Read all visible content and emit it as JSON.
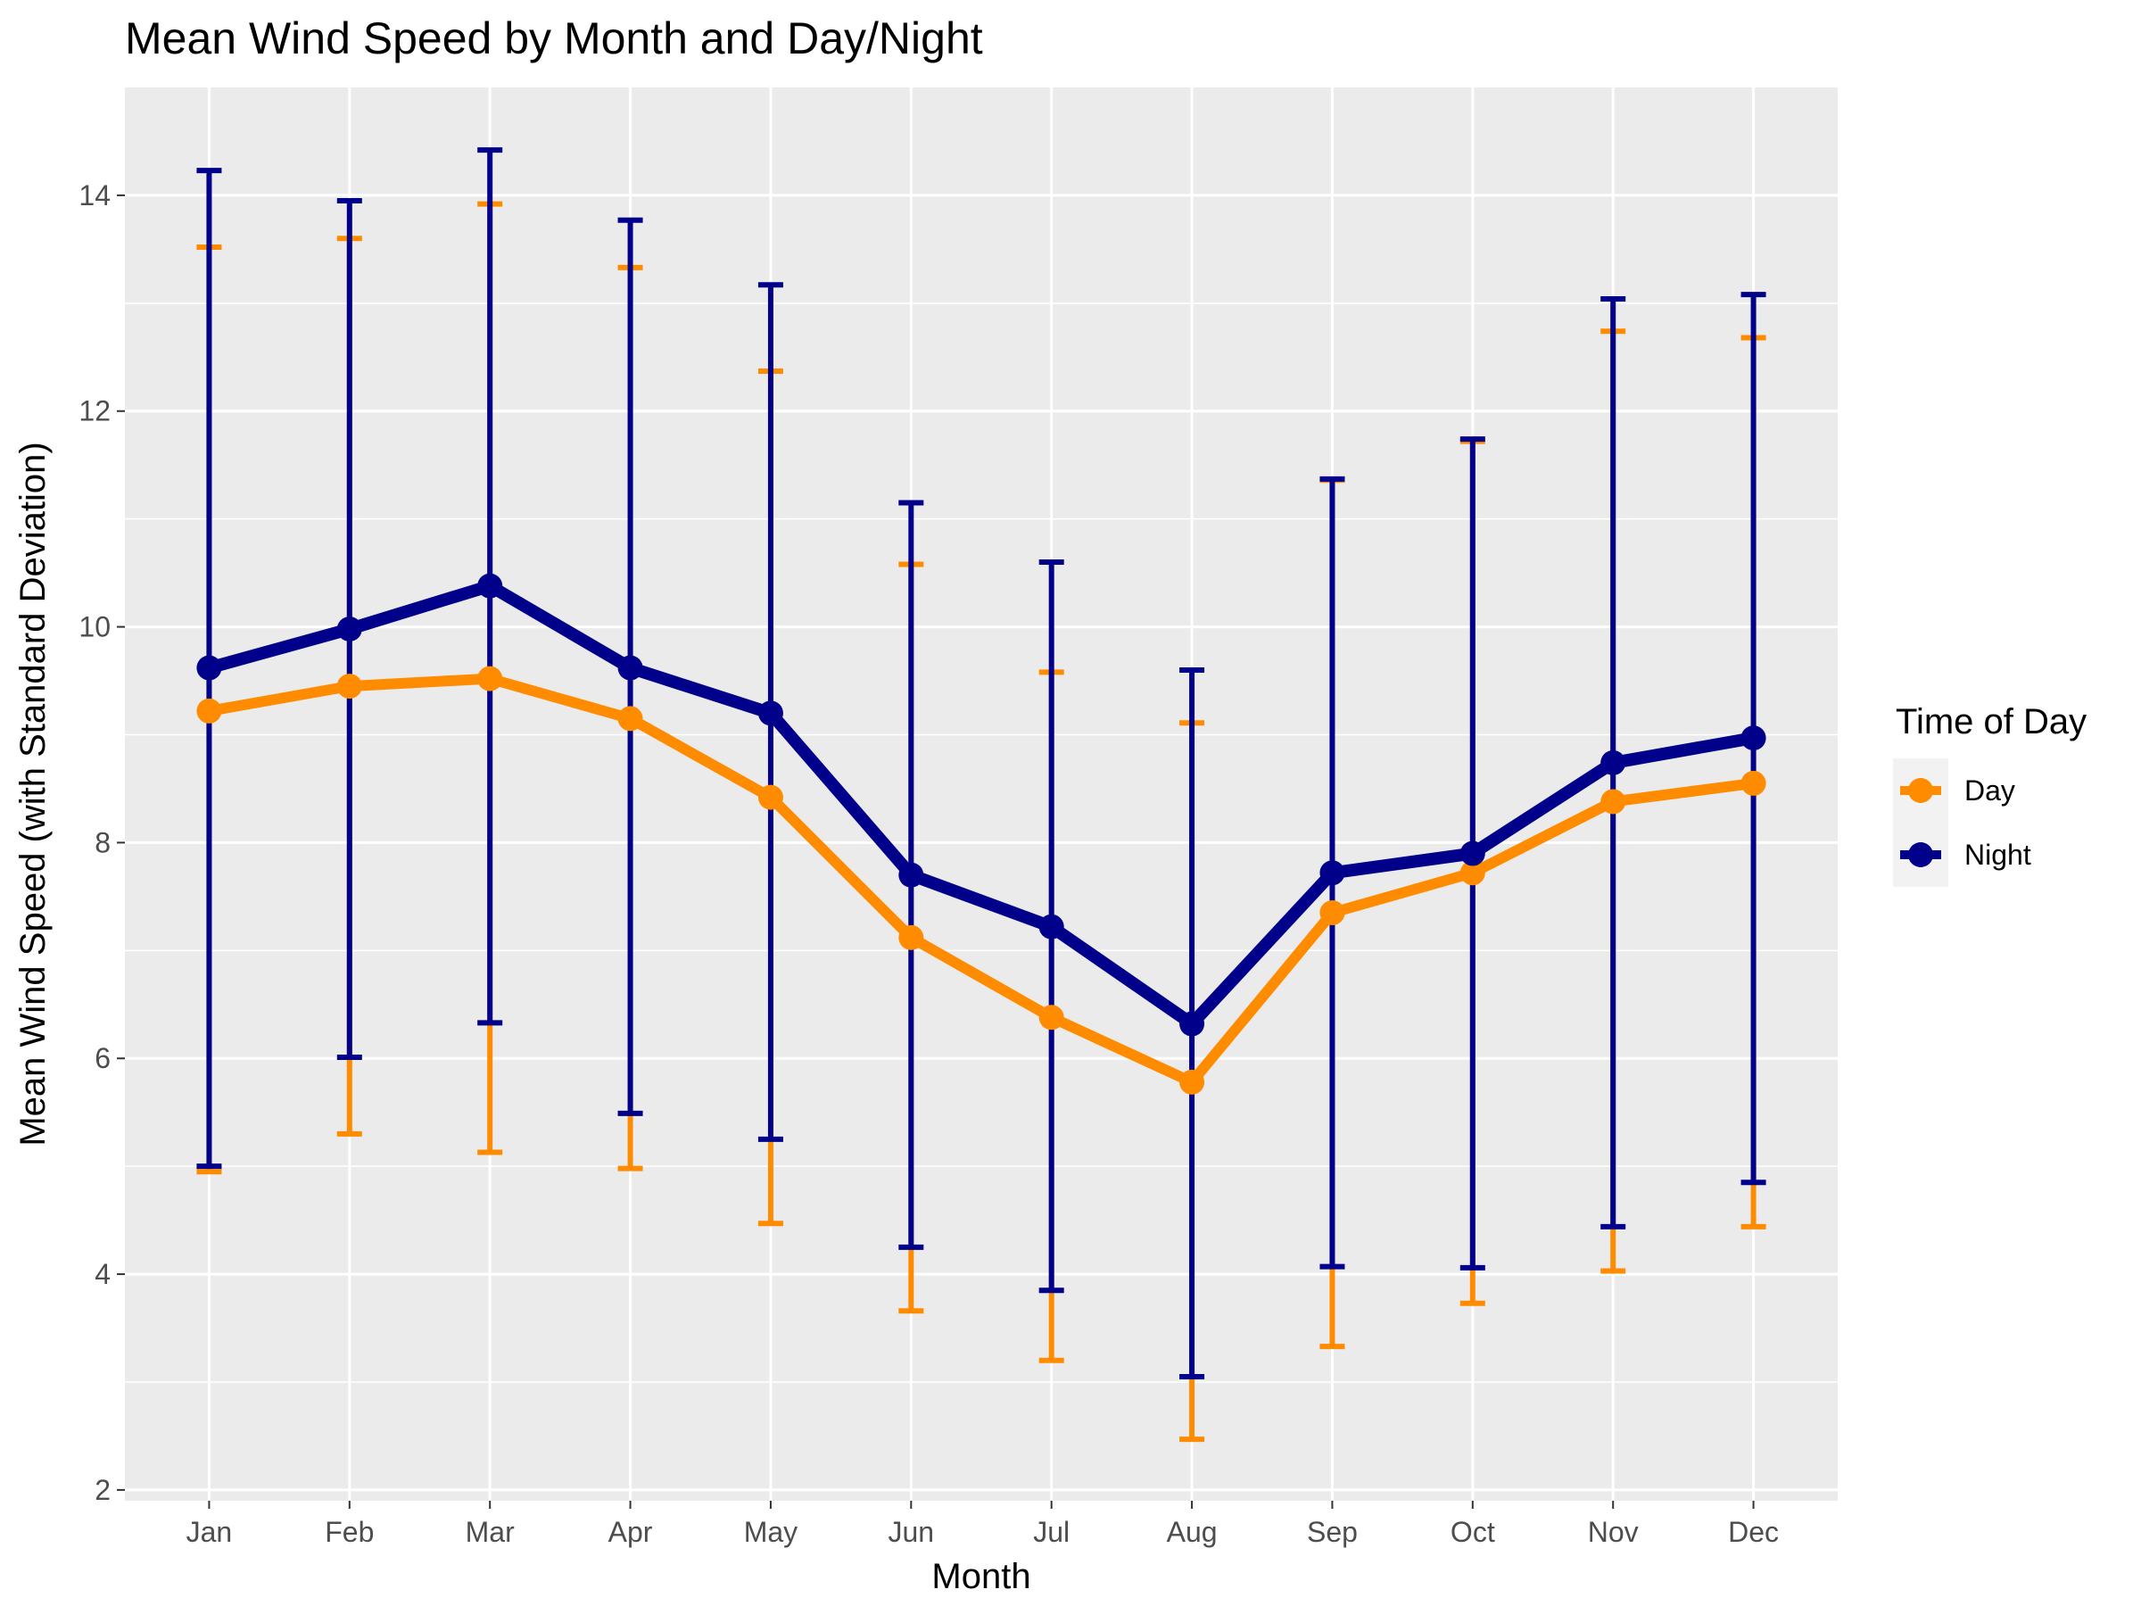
{
  "chart_data": {
    "type": "line",
    "title": "Mean Wind Speed by Month and Day/Night",
    "xlabel": "Month",
    "ylabel": "Mean Wind Speed (with Standard Deviation)",
    "categories": [
      "Jan",
      "Feb",
      "Mar",
      "Apr",
      "May",
      "Jun",
      "Jul",
      "Aug",
      "Sep",
      "Oct",
      "Nov",
      "Dec"
    ],
    "ylim": [
      1.9,
      15.0
    ],
    "yticks": [
      2,
      4,
      6,
      8,
      10,
      12,
      14
    ],
    "grid": true,
    "legend": {
      "title": "Time of Day",
      "placement": "right"
    },
    "series": [
      {
        "name": "Day",
        "color": "#ff8c00",
        "values": [
          9.22,
          9.45,
          9.52,
          9.15,
          8.42,
          7.12,
          6.38,
          5.78,
          7.35,
          7.72,
          8.38,
          8.55
        ],
        "lower": [
          4.95,
          5.3,
          5.13,
          4.98,
          4.47,
          3.66,
          3.2,
          2.47,
          3.33,
          3.73,
          4.03,
          4.44
        ],
        "upper": [
          13.52,
          13.6,
          13.92,
          13.33,
          12.37,
          10.58,
          9.58,
          9.11,
          11.36,
          11.72,
          12.74,
          12.68
        ]
      },
      {
        "name": "Night",
        "color": "#00008b",
        "values": [
          9.62,
          9.98,
          10.38,
          9.62,
          9.2,
          7.7,
          7.22,
          6.32,
          7.72,
          7.9,
          8.74,
          8.97
        ],
        "lower": [
          5.0,
          6.01,
          6.33,
          5.49,
          5.25,
          4.25,
          3.85,
          3.05,
          4.07,
          4.06,
          4.44,
          4.85
        ],
        "upper": [
          14.23,
          13.95,
          14.42,
          13.77,
          13.17,
          11.15,
          10.6,
          9.6,
          11.37,
          11.74,
          13.04,
          13.08
        ]
      }
    ]
  }
}
